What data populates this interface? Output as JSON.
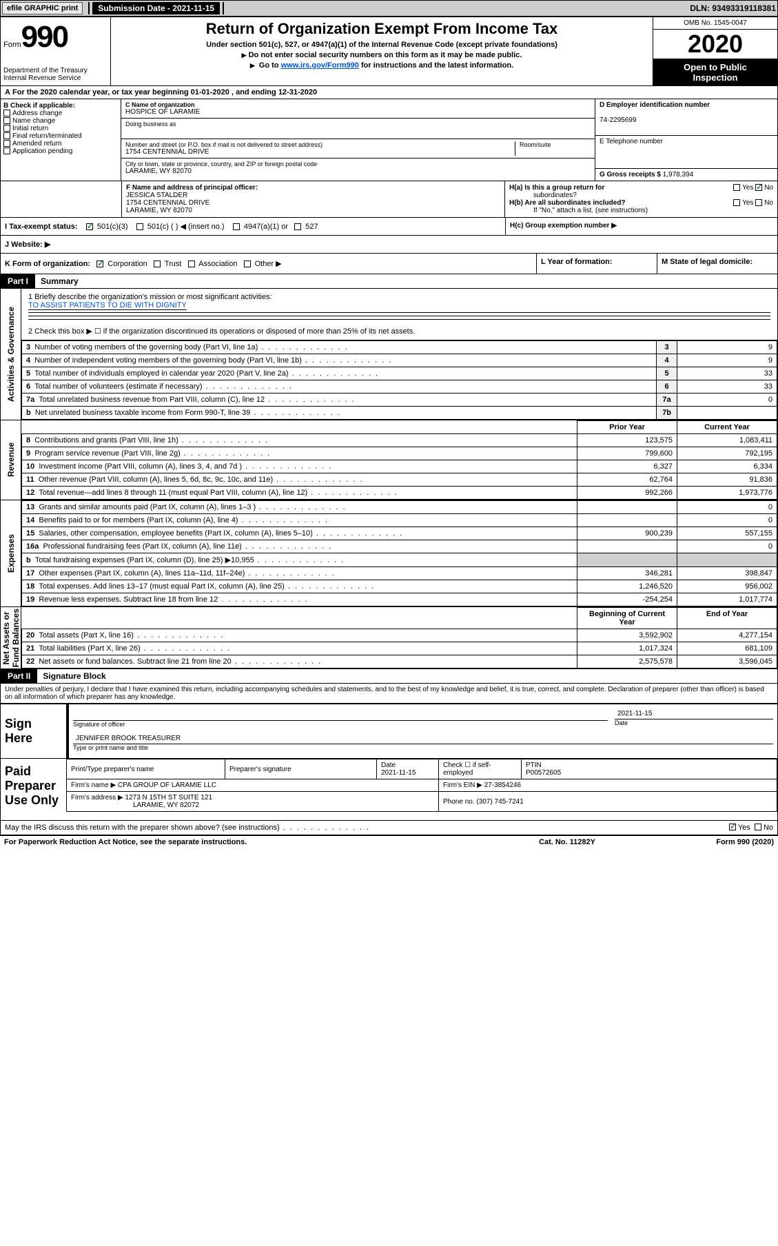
{
  "topbar": {
    "efile": "efile GRAPHIC print",
    "submission": "Submission Date - 2021-11-15",
    "dln": "DLN: 93493319118381"
  },
  "header": {
    "form_label": "Form",
    "form_number": "990",
    "title": "Return of Organization Exempt From Income Tax",
    "subtitle": "Under section 501(c), 527, or 4947(a)(1) of the Internal Revenue Code (except private foundations)",
    "instr1": "Do not enter social security numbers on this form as it may be made public.",
    "instr2_prefix": "Go to ",
    "instr2_link": "www.irs.gov/Form990",
    "instr2_suffix": " for instructions and the latest information.",
    "dept": "Department of the Treasury\nInternal Revenue Service",
    "omb": "OMB No. 1545-0047",
    "year": "2020",
    "public1": "Open to Public",
    "public2": "Inspection"
  },
  "period": {
    "text_prefix": "For the 2020 calendar year, or tax year beginning ",
    "begin": "01-01-2020",
    "text_mid": " , and ending ",
    "end": "12-31-2020"
  },
  "section_B": {
    "label": "B Check if applicable:",
    "items": [
      "Address change",
      "Name change",
      "Initial return",
      "Final return/terminated",
      "Amended return",
      "Application pending"
    ]
  },
  "section_C": {
    "name_label": "C Name of organization",
    "name": "HOSPICE OF LARAMIE",
    "dba_label": "Doing business as",
    "dba": "",
    "street_label": "Number and street (or P.O. box if mail is not delivered to street address)",
    "street": "1754 CENTENNIAL DRIVE",
    "room_label": "Room/suite",
    "room": "",
    "city_label": "City or town, state or province, country, and ZIP or foreign postal code",
    "city": "LARAMIE, WY  82070"
  },
  "section_D": {
    "label": "D Employer identification number",
    "value": "74-2295699"
  },
  "section_E": {
    "label": "E Telephone number",
    "value": ""
  },
  "section_G": {
    "label": "G Gross receipts $",
    "value": "1,978,394"
  },
  "section_F": {
    "label": "F Name and address of principal officer:",
    "name": "JESSICA STALDER",
    "street": "1754 CENTENNIAL DRIVE",
    "city": "LARAMIE, WY  82070"
  },
  "section_H": {
    "a_label": "H(a)  Is this a group return for",
    "a_sub": "subordinates?",
    "b_label": "H(b)  Are all subordinates included?",
    "b_note": "If \"No,\" attach a list. (see instructions)",
    "c_label": "H(c)  Group exemption number ▶"
  },
  "section_I": {
    "label": "I    Tax-exempt status:",
    "o1": "501(c)(3)",
    "o2": "501(c) (   ) ◀ (insert no.)",
    "o3": "4947(a)(1) or",
    "o4": "527"
  },
  "section_J": {
    "label": "J     Website: ▶"
  },
  "section_K": {
    "label": "K Form of organization:",
    "o1": "Corporation",
    "o2": "Trust",
    "o3": "Association",
    "o4": "Other ▶"
  },
  "section_L": {
    "label": "L Year of formation:",
    "value": ""
  },
  "section_M": {
    "label": "M State of legal domicile:",
    "value": ""
  },
  "part1": {
    "header": "Part I",
    "title": "Summary",
    "sides": {
      "gov": "Activities & Governance",
      "rev": "Revenue",
      "exp": "Expenses",
      "net": "Net Assets or\nFund Balances"
    },
    "q1_label": "1   Briefly describe the organization's mission or most significant activities:",
    "q1_mission": "TO ASSIST PATIENTS TO DIE WITH DIGNITY",
    "q2_label": "2    Check this box ▶ ☐  if the organization discontinued its operations or disposed of more than 25% of its net assets.",
    "rows_gov": [
      {
        "n": "3",
        "desc": "Number of voting members of the governing body (Part VI, line 1a)",
        "box": "3",
        "val": "9"
      },
      {
        "n": "4",
        "desc": "Number of independent voting members of the governing body (Part VI, line 1b)",
        "box": "4",
        "val": "9"
      },
      {
        "n": "5",
        "desc": "Total number of individuals employed in calendar year 2020 (Part V, line 2a)",
        "box": "5",
        "val": "33"
      },
      {
        "n": "6",
        "desc": "Total number of volunteers (estimate if necessary)",
        "box": "6",
        "val": "33"
      },
      {
        "n": "7a",
        "desc": "Total unrelated business revenue from Part VIII, column (C), line 12",
        "box": "7a",
        "val": "0"
      },
      {
        "n": "b",
        "desc": "Net unrelated business taxable income from Form 990-T, line 39",
        "box": "7b",
        "val": ""
      }
    ],
    "hdr_prior": "Prior Year",
    "hdr_current": "Current Year",
    "rows_rev": [
      {
        "n": "8",
        "desc": "Contributions and grants (Part VIII, line 1h)",
        "prior": "123,575",
        "curr": "1,083,411"
      },
      {
        "n": "9",
        "desc": "Program service revenue (Part VIII, line 2g)",
        "prior": "799,600",
        "curr": "792,195"
      },
      {
        "n": "10",
        "desc": "Investment income (Part VIII, column (A), lines 3, 4, and 7d )",
        "prior": "6,327",
        "curr": "6,334"
      },
      {
        "n": "11",
        "desc": "Other revenue (Part VIII, column (A), lines 5, 6d, 8c, 9c, 10c, and 11e)",
        "prior": "62,764",
        "curr": "91,836"
      },
      {
        "n": "12",
        "desc": "Total revenue—add lines 8 through 11 (must equal Part VIII, column (A), line 12)",
        "prior": "992,266",
        "curr": "1,973,776"
      }
    ],
    "rows_exp": [
      {
        "n": "13",
        "desc": "Grants and similar amounts paid (Part IX, column (A), lines 1–3 )",
        "prior": "",
        "curr": "0"
      },
      {
        "n": "14",
        "desc": "Benefits paid to or for members (Part IX, column (A), line 4)",
        "prior": "",
        "curr": "0"
      },
      {
        "n": "15",
        "desc": "Salaries, other compensation, employee benefits (Part IX, column (A), lines 5–10)",
        "prior": "900,239",
        "curr": "557,155"
      },
      {
        "n": "16a",
        "desc": "Professional fundraising fees (Part IX, column (A), line 11e)",
        "prior": "",
        "curr": "0"
      },
      {
        "n": "b",
        "desc": "Total fundraising expenses (Part IX, column (D), line 25) ▶10,955",
        "prior": "GRAY",
        "curr": "GRAY"
      },
      {
        "n": "17",
        "desc": "Other expenses (Part IX, column (A), lines 11a–11d, 11f–24e)",
        "prior": "346,281",
        "curr": "398,847"
      },
      {
        "n": "18",
        "desc": "Total expenses. Add lines 13–17 (must equal Part IX, column (A), line 25)",
        "prior": "1,246,520",
        "curr": "956,002"
      },
      {
        "n": "19",
        "desc": "Revenue less expenses. Subtract line 18 from line 12",
        "prior": "-254,254",
        "curr": "1,017,774"
      }
    ],
    "hdr_begin": "Beginning of Current Year",
    "hdr_end": "End of Year",
    "rows_net": [
      {
        "n": "20",
        "desc": "Total assets (Part X, line 16)",
        "prior": "3,592,902",
        "curr": "4,277,154"
      },
      {
        "n": "21",
        "desc": "Total liabilities (Part X, line 26)",
        "prior": "1,017,324",
        "curr": "681,109"
      },
      {
        "n": "22",
        "desc": "Net assets or fund balances. Subtract line 21 from line 20",
        "prior": "2,575,578",
        "curr": "3,596,045"
      }
    ]
  },
  "part2": {
    "header": "Part II",
    "title": "Signature Block",
    "perjury": "Under penalties of perjury, I declare that I have examined this return, including accompanying schedules and statements, and to the best of my knowledge and belief, it is true, correct, and complete. Declaration of preparer (other than officer) is based on all information of which preparer has any knowledge."
  },
  "sign": {
    "label": "Sign Here",
    "sig_label": "Signature of officer",
    "date_label": "Date",
    "date": "2021-11-15",
    "name": "JENNIFER BROOK TREASURER",
    "name_label": "Type or print name and title"
  },
  "preparer": {
    "label": "Paid Preparer Use Only",
    "col1": "Print/Type preparer's name",
    "col2": "Preparer's signature",
    "col3": "Date",
    "col3_val": "2021-11-15",
    "col4": "Check ☐ if self-employed",
    "col5": "PTIN",
    "col5_val": "P00572605",
    "firm_name_label": "Firm's name     ▶",
    "firm_name": "CPA GROUP OF LARAMIE LLC",
    "firm_ein_label": "Firm's EIN ▶",
    "firm_ein": "27-3854246",
    "firm_addr_label": "Firm's address ▶",
    "firm_addr1": "1273 N 15TH ST SUITE 121",
    "firm_addr2": "LARAMIE, WY  82072",
    "phone_label": "Phone no.",
    "phone": "(307) 745-7241"
  },
  "discuss": {
    "text": "May the IRS discuss this return with the preparer shown above? (see instructions)",
    "yes": "Yes",
    "no": "No"
  },
  "footer": {
    "left": "For Paperwork Reduction Act Notice, see the separate instructions.",
    "mid": "Cat. No. 11282Y",
    "right_prefix": "Form ",
    "right_num": "990",
    "right_suffix": " (2020)"
  },
  "yes": "Yes",
  "no": "No"
}
